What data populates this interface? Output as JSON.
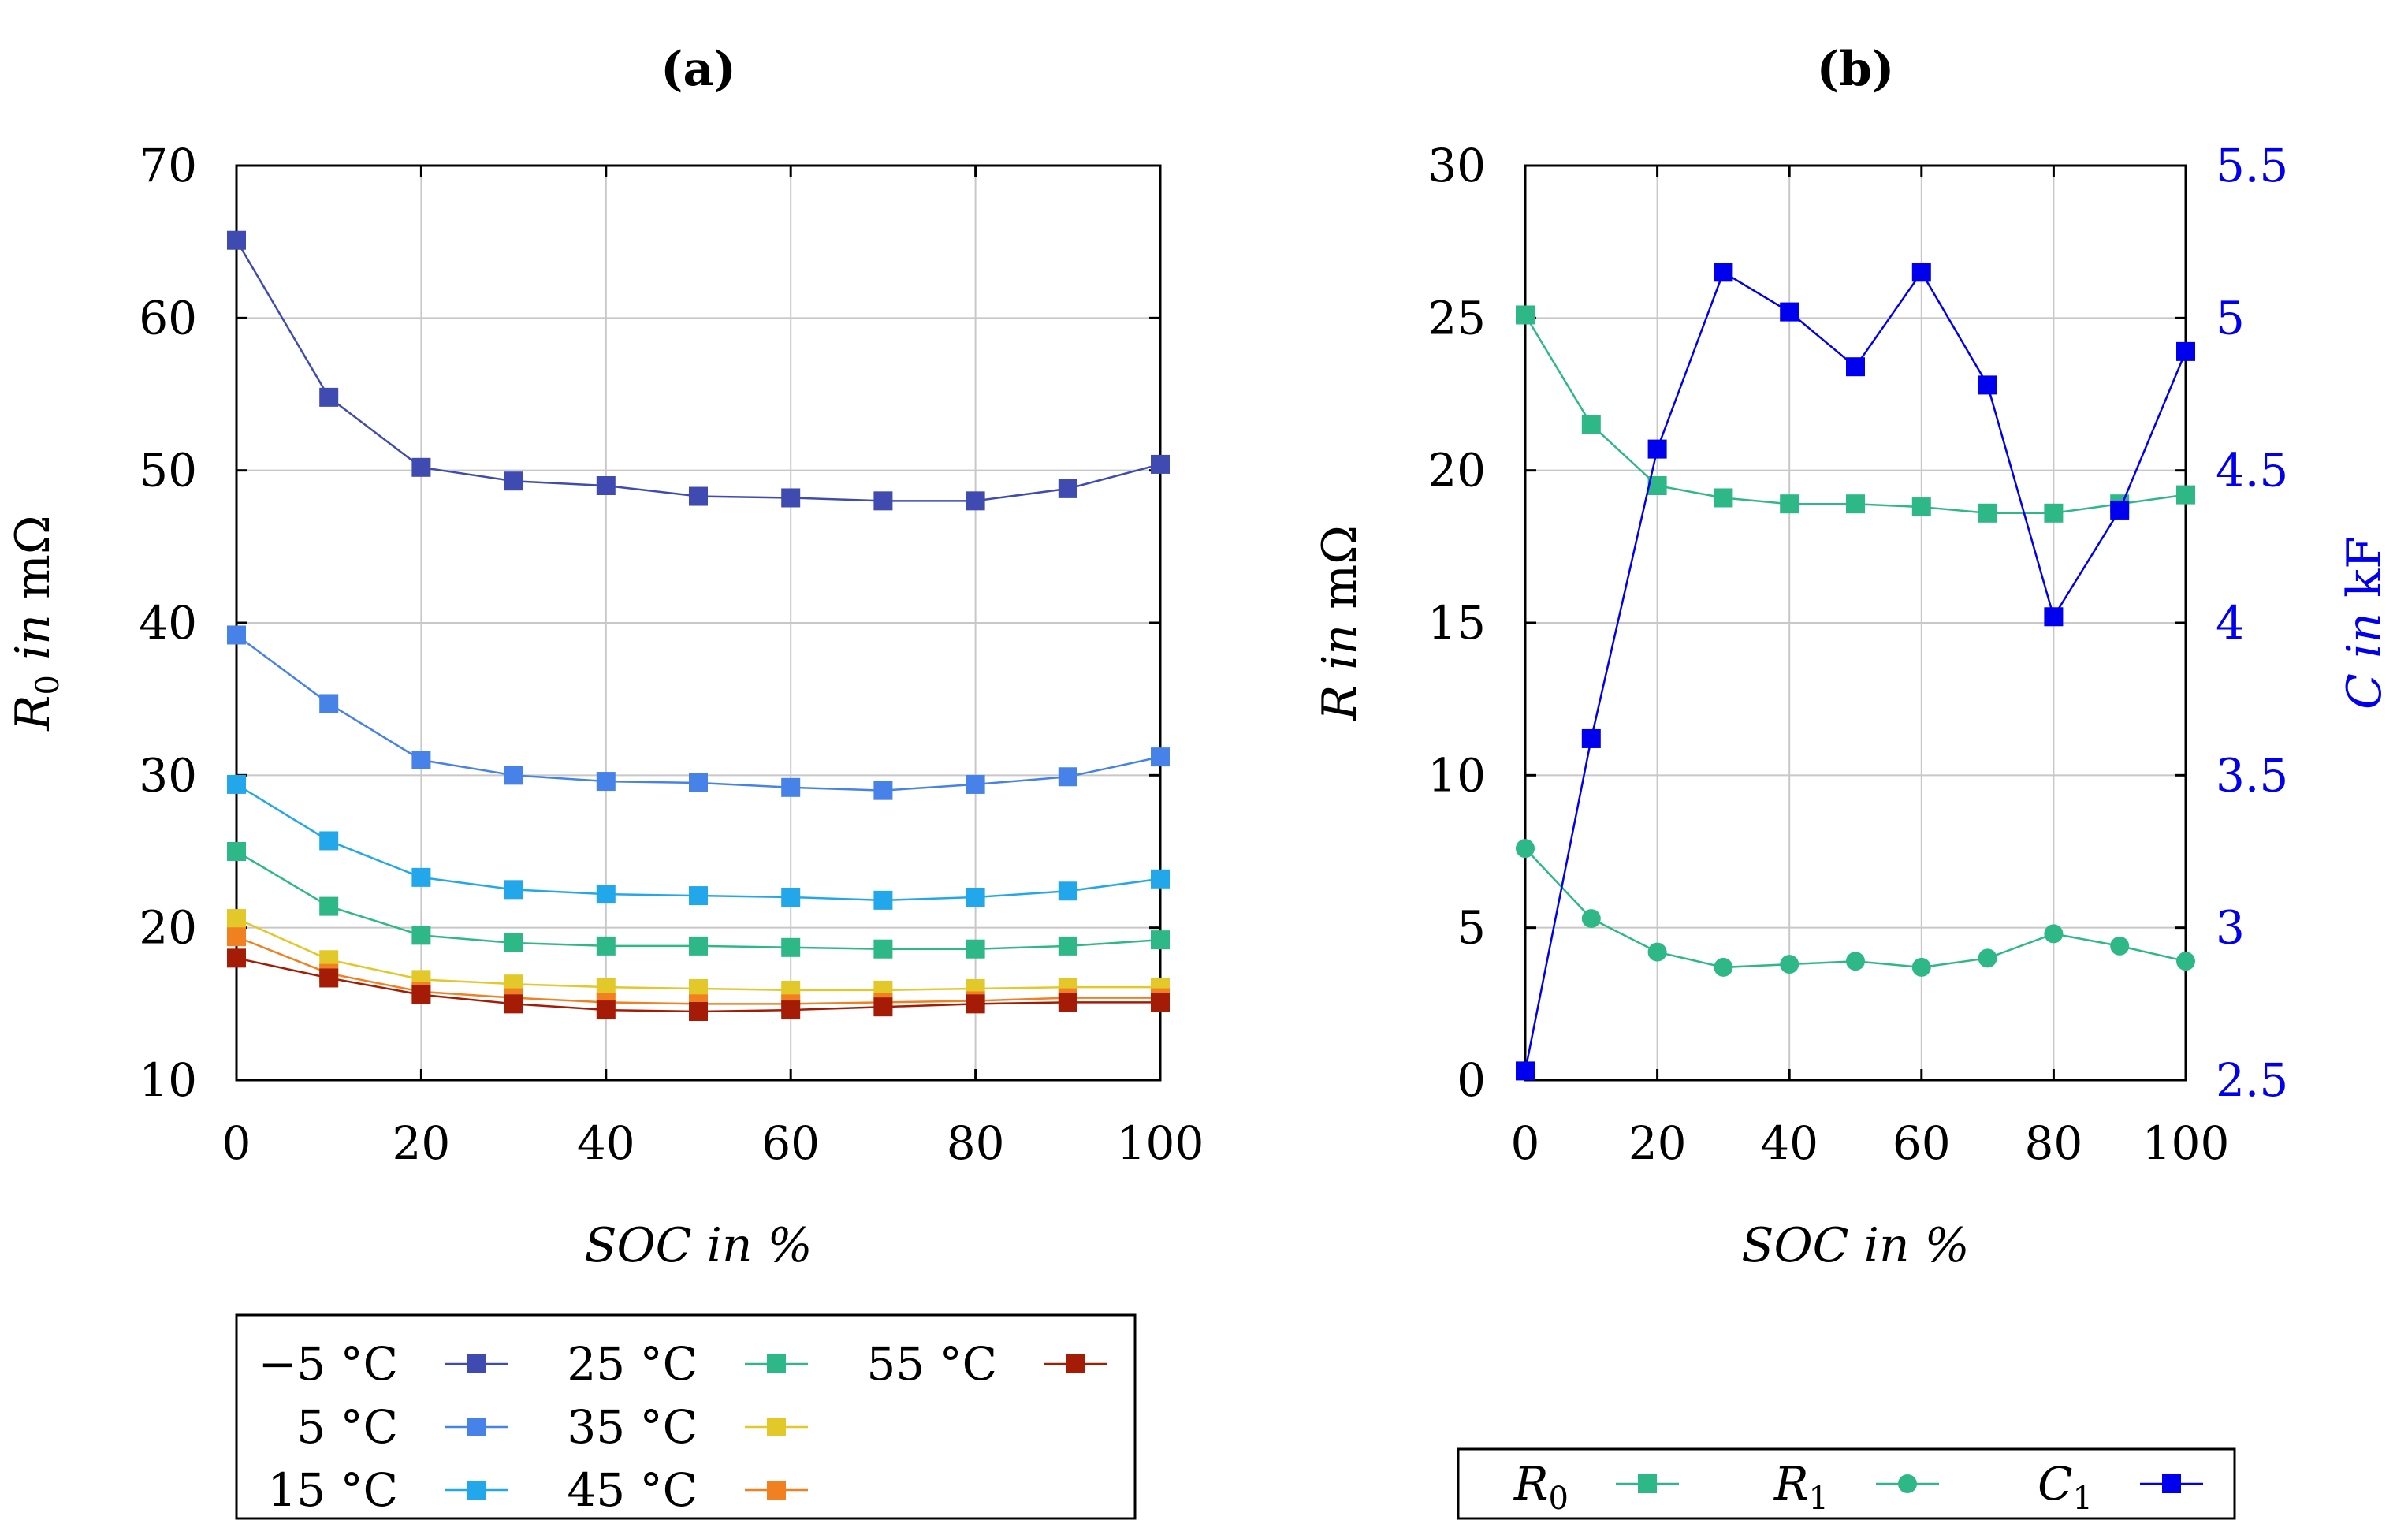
{
  "chart_data": [
    {
      "id": "a",
      "type": "line",
      "title": "(a)",
      "xlabel": "SOC in %",
      "ylabel": "R0 in mΩ",
      "ylabel_parts": [
        "R",
        "0",
        " in ",
        "mΩ"
      ],
      "xlim": [
        0,
        100
      ],
      "ylim": [
        10,
        70
      ],
      "xticks": [
        0,
        20,
        40,
        60,
        80,
        100
      ],
      "yticks": [
        10,
        20,
        30,
        40,
        50,
        60,
        70
      ],
      "grid": true,
      "x": [
        0,
        10,
        20,
        30,
        40,
        50,
        60,
        70,
        80,
        90,
        100
      ],
      "series": [
        {
          "name": "−5 °C",
          "color": "#3f4bb0",
          "marker": "square",
          "values": [
            65.1,
            54.8,
            50.2,
            49.3,
            49.0,
            48.3,
            48.2,
            48.0,
            48.0,
            48.8,
            50.4
          ]
        },
        {
          "name": "5 °C",
          "color": "#4682e8",
          "marker": "square",
          "values": [
            39.2,
            34.7,
            31.0,
            30.0,
            29.6,
            29.5,
            29.2,
            29.0,
            29.4,
            29.9,
            31.2
          ]
        },
        {
          "name": "15 °C",
          "color": "#22a8ea",
          "marker": "square",
          "values": [
            29.4,
            25.7,
            23.3,
            22.5,
            22.2,
            22.1,
            22.0,
            21.8,
            22.0,
            22.4,
            23.2
          ]
        },
        {
          "name": "25 °C",
          "color": "#2eb887",
          "marker": "square",
          "values": [
            25.0,
            21.4,
            19.5,
            19.0,
            18.8,
            18.8,
            18.7,
            18.6,
            18.6,
            18.8,
            19.2
          ]
        },
        {
          "name": "35 °C",
          "color": "#e3c82a",
          "marker": "square",
          "values": [
            20.6,
            17.9,
            16.6,
            16.3,
            16.1,
            16.0,
            15.9,
            15.9,
            16.0,
            16.1,
            16.1
          ]
        },
        {
          "name": "45 °C",
          "color": "#f08020",
          "marker": "square",
          "values": [
            19.4,
            17.0,
            15.8,
            15.4,
            15.1,
            15.0,
            15.0,
            15.1,
            15.2,
            15.4,
            15.4
          ]
        },
        {
          "name": "55 °C",
          "color": "#a51c06",
          "marker": "square",
          "values": [
            18.0,
            16.7,
            15.6,
            15.0,
            14.6,
            14.5,
            14.6,
            14.8,
            15.0,
            15.1,
            15.1
          ]
        }
      ],
      "legend": {
        "position": "below",
        "entries": [
          "−5 °C",
          "5 °C",
          "15 °C",
          "25 °C",
          "35 °C",
          "45 °C",
          "55 °C"
        ]
      }
    },
    {
      "id": "b",
      "type": "line",
      "title": "(b)",
      "xlabel": "SOC in %",
      "ylabel": "R in mΩ",
      "ylabel_parts": [
        "R",
        "",
        " in ",
        "mΩ"
      ],
      "y2label": "C in kF",
      "y2label_parts": [
        "C",
        " in ",
        "kF"
      ],
      "xlim": [
        0,
        100
      ],
      "ylim": [
        0,
        30
      ],
      "y2lim": [
        2.5,
        5.5
      ],
      "xticks": [
        0,
        20,
        40,
        60,
        80,
        100
      ],
      "yticks": [
        0,
        5,
        10,
        15,
        20,
        25,
        30
      ],
      "y2ticks": [
        "2.5",
        "3",
        "3.5",
        "4",
        "4.5",
        "5",
        "5.5"
      ],
      "y2_color": "#0000ee",
      "grid": true,
      "x": [
        0,
        10,
        20,
        30,
        40,
        50,
        60,
        70,
        80,
        90,
        100
      ],
      "series": [
        {
          "name": "R0",
          "sym": "R",
          "sub": "0",
          "axis": "left",
          "color": "#2eb887",
          "marker": "square",
          "values": [
            25.1,
            21.5,
            19.5,
            19.1,
            18.9,
            18.9,
            18.8,
            18.6,
            18.6,
            18.9,
            19.2
          ]
        },
        {
          "name": "R1",
          "sym": "R",
          "sub": "1",
          "axis": "left",
          "color": "#2eb887",
          "marker": "circle",
          "values": [
            7.6,
            5.3,
            4.2,
            3.7,
            3.8,
            3.9,
            3.7,
            4.0,
            4.8,
            4.4,
            3.9
          ]
        },
        {
          "name": "C1",
          "sym": "C",
          "sub": "1",
          "axis": "right",
          "color": "#0000ee",
          "marker": "square",
          "values": [
            2.53,
            3.62,
            4.57,
            5.15,
            5.02,
            4.84,
            5.15,
            4.78,
            4.02,
            4.37,
            4.89
          ]
        }
      ],
      "legend": {
        "position": "below",
        "entries": [
          "R0",
          "R1",
          "C1"
        ]
      }
    }
  ]
}
